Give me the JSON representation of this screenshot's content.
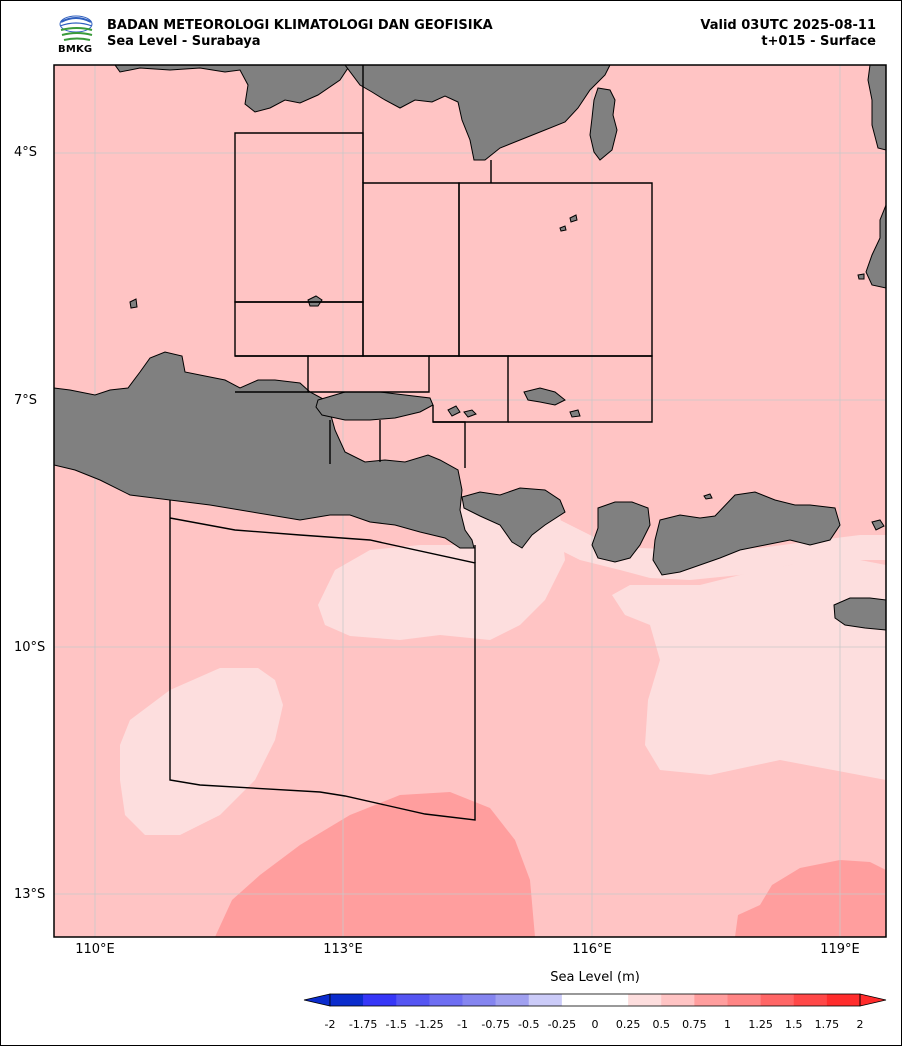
{
  "header": {
    "org_name": "BADAN METEOROLOGI KLIMATOLOGI DAN GEOFISIKA",
    "product": "Sea Level - Surabaya",
    "valid_time": "Valid 03UTC 2025-08-11",
    "forecast_step": "t+015 - Surface",
    "logo_text": "BMKG"
  },
  "map": {
    "lat_labels": [
      "4°S",
      "7°S",
      "10°S",
      "13°S"
    ],
    "lon_labels": [
      "110°E",
      "113°E",
      "116°E",
      "119°E"
    ],
    "land_color": "#808080",
    "sea_colors": {
      "0.5_0.75": "#ffc4c4",
      "0.25_0.5": "#fddede",
      "0.75_1": "#ff9e9e"
    }
  },
  "colorbar": {
    "title": "Sea Level (m)",
    "ticks": [
      "-2",
      "-1.75",
      "-1.5",
      "-1.25",
      "-1",
      "-0.75",
      "-0.5",
      "-0.25",
      "0",
      "0.25",
      "0.5",
      "0.75",
      "1",
      "1.25",
      "1.5",
      "1.75",
      "2"
    ],
    "colors": [
      "#0b2ccd",
      "#3636f7",
      "#5555f2",
      "#6e6ef2",
      "#8585f0",
      "#a0a0f0",
      "#cbcbf8",
      "#ffffff",
      "#ffffff",
      "#fddede",
      "#ffc4c4",
      "#ff9e9e",
      "#ff8585",
      "#ff6666",
      "#ff4848",
      "#ff2c2c"
    ]
  }
}
